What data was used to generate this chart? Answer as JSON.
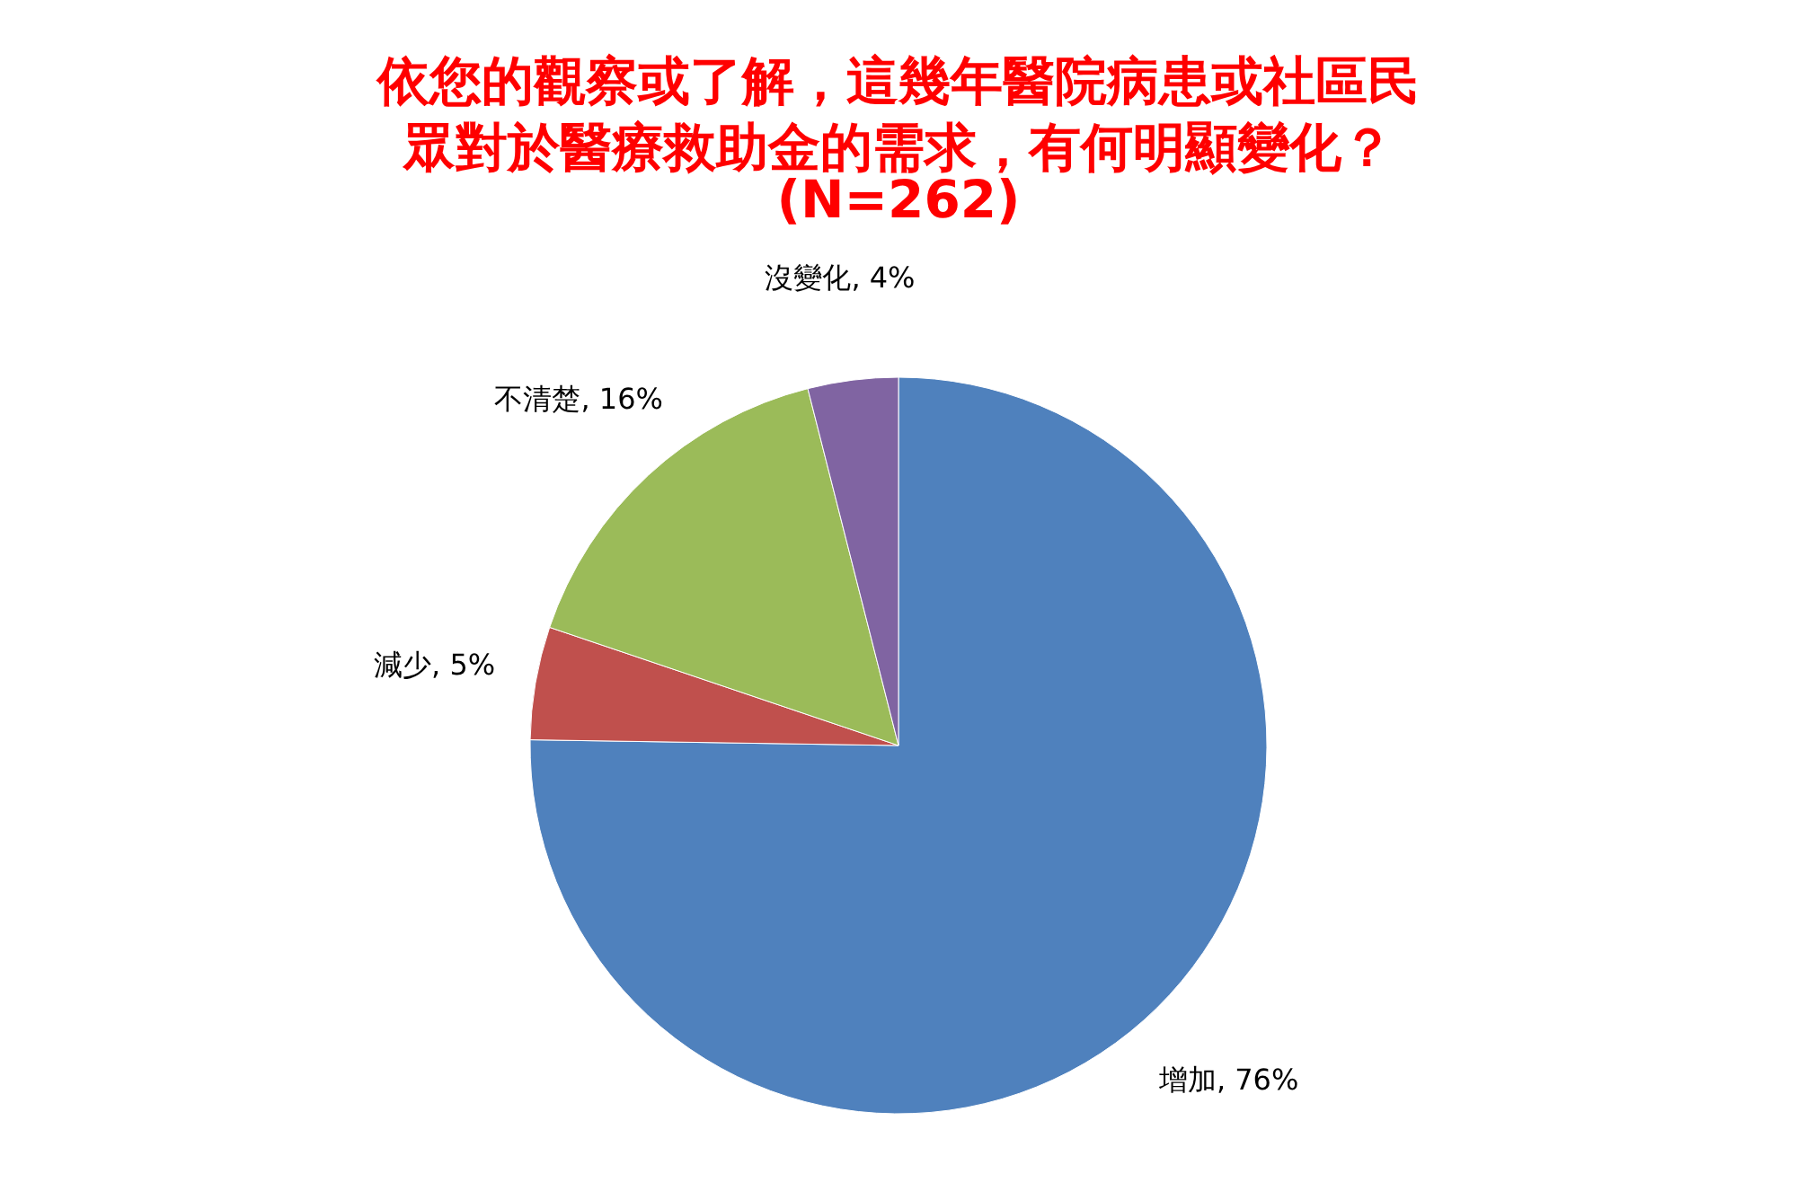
{
  "chart_data": {
    "type": "pie",
    "title": "依您的觀察或了解，這幾年醫院病患或社區民眾對於醫療救助金的需求，有何明顯變化？",
    "subtitle": "(N=262)",
    "categories": [
      "增加",
      "減少",
      "不清楚",
      "沒變化"
    ],
    "values": [
      76,
      5,
      16,
      4
    ],
    "value_labels": [
      "76%",
      "5%",
      "16%",
      "4%"
    ],
    "colors": [
      "#4f81bd",
      "#c0504d",
      "#9bbb59",
      "#8064a2"
    ]
  }
}
